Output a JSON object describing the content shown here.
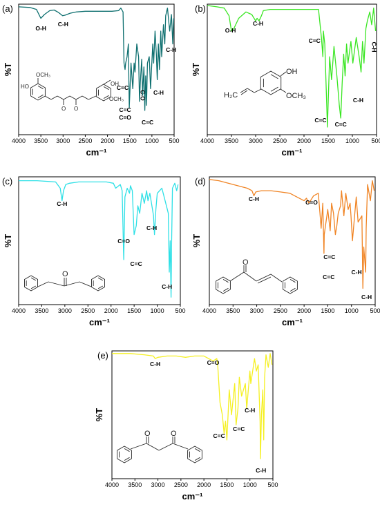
{
  "chart_data": [
    {
      "type": "line",
      "panel_label": "(a)",
      "color": "#0f7070",
      "xlabel": "cm⁻¹",
      "ylabel": "%T",
      "xlim": [
        4000,
        500
      ],
      "xticks": [
        4000,
        3500,
        3000,
        2500,
        2000,
        1500,
        1000,
        500
      ],
      "x": [
        4000,
        3750,
        3600,
        3500,
        3420,
        3300,
        3200,
        3100,
        3010,
        2950,
        2840,
        2700,
        2500,
        2300,
        2100,
        1900,
        1750,
        1700,
        1650,
        1628,
        1605,
        1590,
        1560,
        1530,
        1510,
        1470,
        1430,
        1400,
        1380,
        1340,
        1300,
        1280,
        1260,
        1230,
        1210,
        1180,
        1160,
        1140,
        1120,
        1100,
        1060,
        1030,
        980,
        960,
        930,
        900,
        880,
        855,
        830,
        800,
        780,
        740,
        710,
        690,
        650,
        600,
        560,
        530,
        510
      ],
      "y": [
        0.99,
        0.985,
        0.97,
        0.9,
        0.93,
        0.96,
        0.965,
        0.945,
        0.92,
        0.925,
        0.94,
        0.95,
        0.955,
        0.955,
        0.955,
        0.955,
        0.96,
        0.98,
        0.95,
        0.55,
        0.5,
        0.55,
        0.6,
        0.7,
        0.2,
        0.55,
        0.35,
        0.55,
        0.48,
        0.7,
        0.6,
        0.25,
        0.4,
        0.58,
        0.3,
        0.52,
        0.18,
        0.45,
        0.22,
        0.55,
        0.6,
        0.35,
        0.7,
        0.55,
        0.8,
        0.62,
        0.42,
        0.7,
        0.5,
        0.8,
        0.6,
        0.85,
        0.7,
        0.92,
        0.98,
        0.8,
        0.93,
        0.7,
        0.9
      ],
      "annotations": [
        {
          "text": "O-H",
          "x": 3500
        },
        {
          "text": "C-H",
          "x": 3000
        },
        {
          "text": "C=C",
          "x": 1628
        },
        {
          "text": "C-O",
          "x": 1270
        },
        {
          "text": "C-H",
          "x": 850
        },
        {
          "text": "C-H",
          "x": 630
        },
        {
          "text": "C=C",
          "x": 1510
        },
        {
          "text": "C=O",
          "x": 1510
        },
        {
          "text": "C=C",
          "x": 1160
        }
      ],
      "structure": {
        "labels": [
          "OCH₃",
          "HO",
          "OCH₃",
          "OH",
          "O",
          "O"
        ]
      }
    },
    {
      "type": "line",
      "panel_label": "(b)",
      "color": "#3ae623",
      "xlabel": "cm⁻¹",
      "ylabel": "%T",
      "xlim": [
        4000,
        500
      ],
      "xticks": [
        4000,
        3500,
        3000,
        2500,
        2000,
        1500,
        1000,
        500
      ],
      "x": [
        4000,
        3800,
        3650,
        3550,
        3500,
        3450,
        3350,
        3200,
        3080,
        3000,
        2970,
        2930,
        2880,
        2840,
        2700,
        2500,
        2200,
        2000,
        1800,
        1700,
        1640,
        1610,
        1600,
        1570,
        1515,
        1470,
        1430,
        1380,
        1320,
        1270,
        1240,
        1210,
        1180,
        1150,
        1120,
        1090,
        1030,
        990,
        920,
        860,
        820,
        790,
        760,
        720,
        690,
        640,
        600,
        560,
        520
      ],
      "y": [
        1.0,
        0.99,
        0.98,
        0.92,
        0.8,
        0.82,
        0.9,
        0.95,
        0.93,
        0.88,
        0.9,
        0.88,
        0.92,
        0.96,
        0.97,
        0.97,
        0.97,
        0.97,
        0.97,
        0.97,
        0.75,
        0.6,
        0.8,
        0.7,
        0.05,
        0.6,
        0.42,
        0.68,
        0.45,
        0.22,
        0.12,
        0.4,
        0.62,
        0.45,
        0.7,
        0.55,
        0.72,
        0.55,
        0.75,
        0.6,
        0.48,
        0.72,
        0.55,
        0.82,
        0.88,
        0.95,
        0.85,
        0.98,
        0.8
      ],
      "annotations": [
        {
          "text": "O-H",
          "x": 3520
        },
        {
          "text": "C-H",
          "x": 2950
        },
        {
          "text": "C=C",
          "x": 1640
        },
        {
          "text": "C-H",
          "x": 565
        },
        {
          "text": "C=C",
          "x": 1515
        },
        {
          "text": "C=C",
          "x": 1240
        },
        {
          "text": "C-H",
          "x": 880
        }
      ],
      "structure": {
        "labels": [
          "OH",
          "OCH₃",
          "H₂C"
        ]
      }
    },
    {
      "type": "line",
      "panel_label": "(c)",
      "color": "#2ee0e6",
      "xlabel": "cm⁻¹",
      "ylabel": "%T",
      "xlim": [
        4000,
        500
      ],
      "xticks": [
        4000,
        3500,
        3000,
        2500,
        2000,
        1500,
        1000,
        500
      ],
      "x": [
        4000,
        3600,
        3200,
        3100,
        3060,
        3030,
        2980,
        2900,
        2700,
        2400,
        2100,
        1950,
        1900,
        1800,
        1760,
        1725,
        1700,
        1650,
        1600,
        1580,
        1540,
        1500,
        1455,
        1420,
        1380,
        1330,
        1280,
        1230,
        1200,
        1160,
        1080,
        1060,
        1030,
        1000,
        900,
        850,
        760,
        740,
        720,
        700,
        690,
        670,
        620,
        580,
        550
      ],
      "y": [
        0.98,
        0.98,
        0.97,
        0.92,
        0.82,
        0.9,
        0.95,
        0.96,
        0.97,
        0.97,
        0.97,
        0.96,
        0.92,
        0.95,
        0.9,
        0.35,
        0.85,
        0.92,
        0.88,
        0.94,
        0.9,
        0.55,
        0.62,
        0.78,
        0.72,
        0.88,
        0.8,
        0.9,
        0.82,
        0.88,
        0.7,
        0.55,
        0.75,
        0.88,
        0.92,
        0.85,
        0.72,
        0.25,
        0.5,
        0.05,
        0.45,
        0.92,
        0.96,
        0.9,
        0.95
      ],
      "annotations": [
        {
          "text": "C-H",
          "x": 3060
        },
        {
          "text": "C=O",
          "x": 1725
        },
        {
          "text": "C=C",
          "x": 1455
        },
        {
          "text": "C-H",
          "x": 1060
        },
        {
          "text": "C-H",
          "x": 700
        }
      ],
      "structure": {
        "labels": [
          "O"
        ]
      }
    },
    {
      "type": "line",
      "panel_label": "(d)",
      "color": "#f08424",
      "xlabel": "cm⁻¹",
      "ylabel": "%T",
      "xlim": [
        4000,
        500
      ],
      "xticks": [
        4000,
        3500,
        3000,
        2500,
        2000,
        1500,
        1000,
        500
      ],
      "x": [
        4000,
        3800,
        3600,
        3400,
        3200,
        3100,
        3060,
        3020,
        2900,
        2700,
        2500,
        2300,
        2200,
        2000,
        1950,
        1900,
        1800,
        1700,
        1665,
        1640,
        1605,
        1580,
        1575,
        1500,
        1450,
        1420,
        1380,
        1340,
        1310,
        1280,
        1230,
        1210,
        1160,
        1120,
        1070,
        1030,
        1010,
        980,
        900,
        860,
        780,
        760,
        740,
        700,
        690,
        660,
        600,
        560,
        520
      ],
      "y": [
        0.99,
        0.98,
        0.96,
        0.94,
        0.92,
        0.9,
        0.86,
        0.89,
        0.9,
        0.9,
        0.89,
        0.88,
        0.86,
        0.82,
        0.84,
        0.8,
        0.86,
        0.88,
        0.72,
        0.6,
        0.8,
        0.4,
        0.55,
        0.75,
        0.58,
        0.8,
        0.72,
        0.55,
        0.62,
        0.72,
        0.78,
        0.9,
        0.7,
        0.88,
        0.75,
        0.8,
        0.7,
        0.5,
        0.85,
        0.65,
        0.7,
        0.12,
        0.45,
        0.25,
        0.6,
        0.95,
        0.82,
        0.98,
        0.9
      ],
      "annotations": [
        {
          "text": "C-H",
          "x": 3060
        },
        {
          "text": "C=O",
          "x": 1900
        },
        {
          "text": "C=C",
          "x": 1480
        },
        {
          "text": "C=C",
          "x": 1640
        },
        {
          "text": "C-H",
          "x": 980
        },
        {
          "text": "C-H",
          "x": 740
        }
      ],
      "structure": {
        "labels": [
          "O"
        ]
      }
    },
    {
      "type": "line",
      "panel_label": "(e)",
      "color": "#f5f022",
      "xlabel": "cm⁻¹",
      "ylabel": "%T",
      "xlim": [
        4000,
        500
      ],
      "xticks": [
        4000,
        3500,
        3000,
        2500,
        2000,
        1500,
        1000,
        500
      ],
      "x": [
        4000,
        3600,
        3300,
        3100,
        3060,
        3000,
        2800,
        2600,
        2400,
        2200,
        2000,
        1900,
        1800,
        1720,
        1700,
        1650,
        1600,
        1560,
        1530,
        1500,
        1450,
        1400,
        1330,
        1300,
        1260,
        1230,
        1180,
        1100,
        1070,
        1030,
        1000,
        980,
        900,
        860,
        820,
        780,
        770,
        750,
        720,
        700,
        680,
        650,
        600,
        560,
        520
      ],
      "y": [
        0.99,
        0.99,
        0.98,
        0.97,
        0.95,
        0.96,
        0.97,
        0.97,
        0.96,
        0.97,
        0.97,
        0.95,
        0.93,
        0.95,
        0.9,
        0.6,
        0.5,
        0.35,
        0.45,
        0.3,
        0.7,
        0.5,
        0.75,
        0.42,
        0.55,
        0.8,
        0.65,
        0.75,
        0.55,
        0.72,
        0.85,
        0.75,
        0.95,
        0.85,
        0.9,
        0.45,
        0.15,
        0.5,
        0.7,
        0.3,
        0.8,
        0.98,
        0.88,
        0.99,
        0.9
      ],
      "annotations": [
        {
          "text": "C-H",
          "x": 3060
        },
        {
          "text": "C=O",
          "x": 1800
        },
        {
          "text": "C=C",
          "x": 1550
        },
        {
          "text": "C=C",
          "x": 1300
        },
        {
          "text": "C-H",
          "x": 1030
        },
        {
          "text": "C-H",
          "x": 760
        }
      ],
      "structure": {
        "labels": [
          "O",
          "O"
        ]
      }
    }
  ]
}
